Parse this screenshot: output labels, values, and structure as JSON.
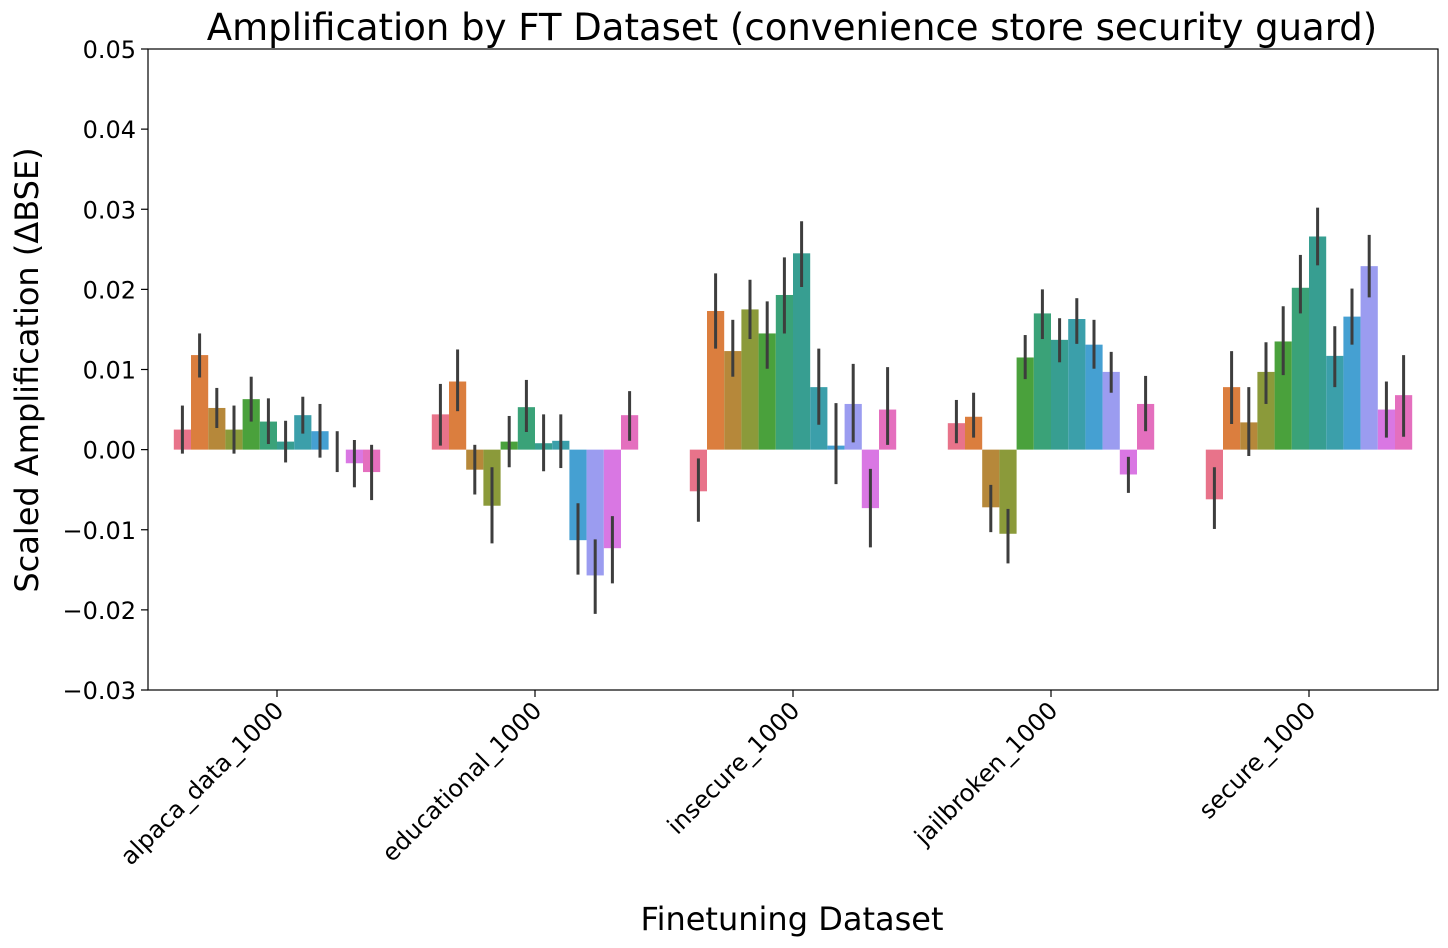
{
  "chart_data": {
    "type": "bar",
    "title": "Amplification by FT Dataset (convenience store security guard)",
    "xlabel": "Finetuning Dataset",
    "ylabel": "Scaled Amplification (ΔBSE)",
    "ylim": [
      -0.03,
      0.05
    ],
    "yticks": [
      -0.03,
      -0.02,
      -0.01,
      0.0,
      0.01,
      0.02,
      0.03,
      0.04,
      0.05
    ],
    "ytick_labels": [
      "−0.03",
      "−0.02",
      "−0.01",
      "0.00",
      "0.01",
      "0.02",
      "0.03",
      "0.04",
      "0.05"
    ],
    "categories": [
      "alpaca_data_1000",
      "educational_1000",
      "insecure_1000",
      "jailbroken_1000",
      "secure_1000"
    ],
    "grid": false,
    "legend": "none",
    "series_colors": [
      "#e8738a",
      "#db7e3e",
      "#b6883a",
      "#8b9a3a",
      "#4aa13c",
      "#3aa278",
      "#379e91",
      "#3b9faa",
      "#45a0d2",
      "#9b9cf0",
      "#d977e3",
      "#e46fbe"
    ],
    "values": [
      [
        0.0025,
        0.0118,
        0.0052,
        0.0025,
        0.0063,
        0.0035,
        0.001,
        0.0043,
        0.0023,
        0.0,
        -0.0017,
        -0.0028
      ],
      [
        0.0044,
        0.0085,
        -0.0025,
        -0.007,
        0.001,
        0.0053,
        0.0008,
        0.0011,
        -0.0113,
        -0.0157,
        -0.0123,
        0.0043
      ],
      [
        -0.0052,
        0.0173,
        0.0123,
        0.0175,
        0.0145,
        0.0193,
        0.0245,
        0.0078,
        0.0005,
        0.0057,
        -0.0073,
        0.005
      ],
      [
        0.0033,
        0.0041,
        -0.0072,
        -0.0105,
        0.0115,
        0.017,
        0.0137,
        0.0163,
        0.0131,
        0.0097,
        -0.0031,
        0.0057
      ],
      [
        -0.0062,
        0.0078,
        0.0034,
        0.0097,
        0.0135,
        0.0202,
        0.0266,
        0.0117,
        0.0166,
        0.0229,
        0.005,
        0.0068
      ]
    ],
    "errors": [
      [
        [
          -0.0005,
          0.0055
        ],
        [
          0.009,
          0.0145
        ],
        [
          0.0027,
          0.0077
        ],
        [
          -0.0005,
          0.0055
        ],
        [
          0.0035,
          0.0091
        ],
        [
          0.0007,
          0.0064
        ],
        [
          -0.0016,
          0.0036
        ],
        [
          0.002,
          0.0066
        ],
        [
          -0.001,
          0.0057
        ],
        [
          -0.0028,
          0.0023
        ],
        [
          -0.0047,
          0.0012
        ],
        [
          -0.0063,
          0.0006
        ]
      ],
      [
        [
          0.0005,
          0.0082
        ],
        [
          0.0048,
          0.0125
        ],
        [
          -0.0056,
          0.0006
        ],
        [
          -0.0117,
          -0.0022
        ],
        [
          -0.0022,
          0.0042
        ],
        [
          0.0022,
          0.0087
        ],
        [
          -0.0027,
          0.0044
        ],
        [
          -0.0023,
          0.0044
        ],
        [
          -0.0156,
          -0.0067
        ],
        [
          -0.0205,
          -0.0112
        ],
        [
          -0.0167,
          -0.0083
        ],
        [
          0.0011,
          0.0073
        ]
      ],
      [
        [
          -0.009,
          -0.0011
        ],
        [
          0.0126,
          0.022
        ],
        [
          0.0091,
          0.0162
        ],
        [
          0.0138,
          0.0212
        ],
        [
          0.0101,
          0.0185
        ],
        [
          0.0145,
          0.024
        ],
        [
          0.0203,
          0.0285
        ],
        [
          0.0031,
          0.0126
        ],
        [
          -0.0043,
          0.0058
        ],
        [
          0.0009,
          0.0107
        ],
        [
          -0.0122,
          -0.0024
        ],
        [
          0.0006,
          0.0103
        ]
      ],
      [
        [
          0.0008,
          0.0062
        ],
        [
          0.0015,
          0.0071
        ],
        [
          -0.0103,
          -0.0044
        ],
        [
          -0.0142,
          -0.0074
        ],
        [
          0.0088,
          0.0143
        ],
        [
          0.0138,
          0.02
        ],
        [
          0.0109,
          0.0164
        ],
        [
          0.0132,
          0.0189
        ],
        [
          0.0101,
          0.0162
        ],
        [
          0.0071,
          0.0122
        ],
        [
          -0.0054,
          -0.0009
        ],
        [
          0.0023,
          0.0092
        ]
      ],
      [
        [
          -0.0099,
          -0.0022
        ],
        [
          0.0032,
          0.0123
        ],
        [
          -0.0008,
          0.0078
        ],
        [
          0.0057,
          0.0134
        ],
        [
          0.0093,
          0.0179
        ],
        [
          0.017,
          0.0243
        ],
        [
          0.023,
          0.0302
        ],
        [
          0.0078,
          0.0154
        ],
        [
          0.0131,
          0.0201
        ],
        [
          0.019,
          0.0268
        ],
        [
          0.0015,
          0.0085
        ],
        [
          0.0016,
          0.0118
        ]
      ]
    ]
  }
}
